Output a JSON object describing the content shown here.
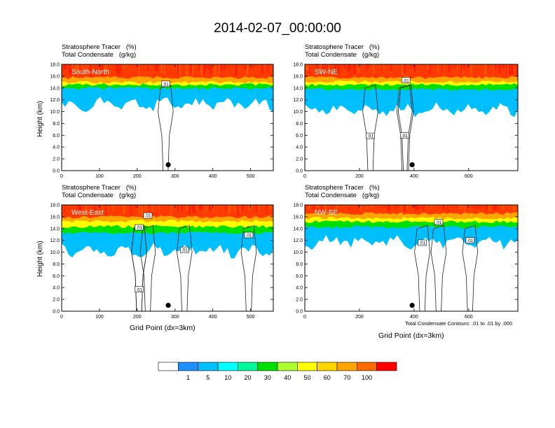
{
  "page_title": "2014-02-07_00:00:00",
  "contour_note": "Total Condensate Contours: .01 to .01 by .000",
  "colorbar": {
    "colors": [
      "#ffffff",
      "#1e90ff",
      "#00bfff",
      "#00ffff",
      "#00fa9a",
      "#00e000",
      "#adff2f",
      "#ffff00",
      "#ffd700",
      "#ffa500",
      "#ff6a00",
      "#ff0000"
    ],
    "labels": [
      "1",
      "5",
      "10",
      "20",
      "30",
      "40",
      "50",
      "60",
      "70",
      "100"
    ]
  },
  "chart_data": [
    {
      "type": "heatmap",
      "region_label": "South-North",
      "title_line1": "Stratosphere Tracer   (%)",
      "title_line2": "Total Condensate   (g/kg)",
      "ylabel": "Height (km)",
      "xlabel": "",
      "xlim": [
        0,
        560
      ],
      "ylim": [
        0,
        18
      ],
      "xticks": [
        "0",
        "100",
        "200",
        "300",
        "400",
        "500"
      ],
      "xtick_values": [
        0,
        100,
        200,
        300,
        400,
        500
      ],
      "yticks": [
        "0.0",
        "2.0",
        "4.0",
        "6.0",
        "8.0",
        "10.0",
        "12.0",
        "14.0",
        "16.0",
        "18.0"
      ],
      "contour_labels": [
        {
          "text": ".01",
          "x": 275,
          "y": 14.7
        }
      ],
      "marker": {
        "x": 282,
        "y": 1.0
      },
      "tracer_layers": [
        {
          "level": "70-100",
          "bottom": 16.0
        },
        {
          "level": "50-70",
          "bottom": 15.2
        },
        {
          "level": "30-50",
          "bottom": 14.8
        },
        {
          "level": "10-30",
          "bottom": 14.2
        },
        {
          "level": "1-10",
          "bottom": 12.0
        }
      ]
    },
    {
      "type": "heatmap",
      "region_label": "SW-NE",
      "title_line1": "Stratosphere Tracer   (%)",
      "title_line2": "Total Condensate   (g/kg)",
      "ylabel": "",
      "xlabel": "",
      "xlim": [
        0,
        780
      ],
      "ylim": [
        0,
        18
      ],
      "xticks": [
        "0",
        "200",
        "400",
        "600"
      ],
      "xtick_values": [
        0,
        200,
        400,
        600
      ],
      "yticks": [
        "0.0",
        "2.0",
        "4.0",
        "6.0",
        "8.0",
        "10.0",
        "12.0",
        "14.0",
        "16.0",
        "18.0"
      ],
      "contour_labels": [
        {
          "text": ".01",
          "x": 240,
          "y": 5.9
        },
        {
          "text": ".01",
          "x": 365,
          "y": 6.0
        },
        {
          "text": ".01",
          "x": 370,
          "y": 15.3
        }
      ],
      "marker": {
        "x": 393,
        "y": 1.0
      },
      "tracer_layers": [
        {
          "level": "70-100",
          "bottom": 16.0
        },
        {
          "level": "50-70",
          "bottom": 15.3
        },
        {
          "level": "30-50",
          "bottom": 14.8
        },
        {
          "level": "10-30",
          "bottom": 14.0
        },
        {
          "level": "1-10",
          "bottom": 11.0
        }
      ]
    },
    {
      "type": "heatmap",
      "region_label": "West-East",
      "title_line1": "Stratosphere Tracer   (%)",
      "title_line2": "Total Condensate   (g/kg)",
      "ylabel": "Height (km)",
      "xlabel": "Grid Point (dx=3km)",
      "xlim": [
        0,
        560
      ],
      "ylim": [
        0,
        18
      ],
      "xticks": [
        "0",
        "100",
        "200",
        "300",
        "400",
        "500"
      ],
      "xtick_values": [
        0,
        100,
        200,
        300,
        400,
        500
      ],
      "yticks": [
        "0.0",
        "2.0",
        "4.0",
        "6.0",
        "8.0",
        "10.0",
        "12.0",
        "14.0",
        "16.0",
        "18.0"
      ],
      "contour_labels": [
        {
          "text": ".01",
          "x": 228,
          "y": 16.2
        },
        {
          "text": ".01",
          "x": 205,
          "y": 14.2
        },
        {
          "text": ".01",
          "x": 325,
          "y": 10.4
        },
        {
          "text": ".01",
          "x": 495,
          "y": 12.9
        },
        {
          "text": ".01",
          "x": 205,
          "y": 3.7
        }
      ],
      "marker": {
        "x": 282,
        "y": 1.0
      },
      "tracer_layers": [
        {
          "level": "70-100",
          "bottom": 16.2
        },
        {
          "level": "50-70",
          "bottom": 15.5
        },
        {
          "level": "30-50",
          "bottom": 14.6
        },
        {
          "level": "10-30",
          "bottom": 13.5
        },
        {
          "level": "1-10",
          "bottom": 11.0
        }
      ]
    },
    {
      "type": "heatmap",
      "region_label": "NW-SE",
      "title_line1": "Stratosphere Tracer   (%)",
      "title_line2": "Total Condensate   (g/kg)",
      "ylabel": "",
      "xlabel": "Grid Point (dx=3km)",
      "xlim": [
        0,
        780
      ],
      "ylim": [
        0,
        18
      ],
      "xticks": [
        "0",
        "200",
        "400",
        "600"
      ],
      "xtick_values": [
        0,
        200,
        400,
        600
      ],
      "yticks": [
        "0.0",
        "2.0",
        "4.0",
        "6.0",
        "8.0",
        "10.0",
        "12.0",
        "14.0",
        "16.0",
        "18.0"
      ],
      "contour_labels": [
        {
          "text": ".01",
          "x": 490,
          "y": 15.1
        },
        {
          "text": ".01",
          "x": 430,
          "y": 11.6
        },
        {
          "text": ".01",
          "x": 605,
          "y": 12.0
        }
      ],
      "marker": {
        "x": 393,
        "y": 1.0
      },
      "tracer_layers": [
        {
          "level": "70-100",
          "bottom": 16.8
        },
        {
          "level": "50-70",
          "bottom": 16.0
        },
        {
          "level": "30-50",
          "bottom": 15.4
        },
        {
          "level": "10-30",
          "bottom": 14.5
        },
        {
          "level": "1-10",
          "bottom": 12.5
        }
      ]
    }
  ]
}
